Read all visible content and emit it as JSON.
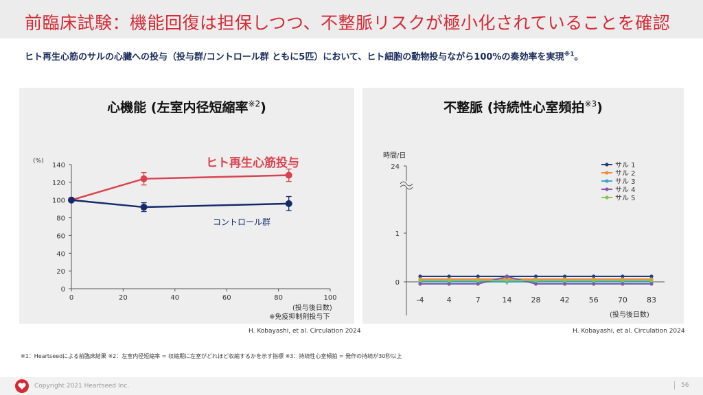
{
  "page": {
    "title": "前臨床試験：機能回復は担保しつつ、不整脈リスクが極小化されていることを確認",
    "subtitle": "ヒト再生心筋のサルの心臓への投与（投与群/コントロール群 ともに5匹）において、ヒト細胞の動物投与ながら100%の奏効率を実現",
    "subtitle_mark": "※1",
    "subtitle_end": "。",
    "left_panel_title": "心機能 (左室内径短縮率",
    "left_panel_title_mark": "※2",
    "left_panel_title_end": ")",
    "right_panel_title": "不整脈 (持続性心室頻拍",
    "right_panel_title_mark": "※3",
    "right_panel_title_end": ")",
    "citation_left": "H. Kobayashi, et al. Circulation 2024",
    "citation_right": "H. Kobayashi, et al. Circulation 2024",
    "footnote": "※1：Heartseedによる前臨床結果 ※2：左室内径短縮率 = 収縮期に左室がどれほど収縮するかを示す指標 ※3：持続性心室頻拍 = 発作の持続が30秒以上",
    "copyright": "Copyright 2021 Heartseed Inc.",
    "page_number": "56",
    "brand_color": "#d22b35",
    "logo_icon": "heart-logo-icon"
  },
  "chart_data": [
    {
      "type": "line",
      "ylabel": "(%)",
      "xlabel": "(投与後日数)",
      "note": "※免疫抑制剤投与下",
      "xlim": [
        0,
        100
      ],
      "ylim": [
        0,
        140
      ],
      "x_ticks": [
        0,
        20,
        40,
        60,
        80,
        100
      ],
      "y_ticks": [
        0,
        20,
        40,
        60,
        80,
        100,
        120,
        140
      ],
      "grid": false,
      "series": [
        {
          "name": "ヒト再生心筋投与",
          "color": "#d9434f",
          "x": [
            0,
            28,
            84
          ],
          "y": [
            100,
            124,
            128
          ],
          "err": [
            0,
            7,
            7
          ]
        },
        {
          "name": "コントロール群",
          "color": "#142a6b",
          "x": [
            0,
            28,
            84
          ],
          "y": [
            100,
            92,
            96
          ],
          "err": [
            0,
            5,
            8
          ]
        }
      ]
    },
    {
      "type": "line",
      "ylabel": "時間/日",
      "xlabel": "(投与後日数)",
      "categories": [
        "-4",
        "4",
        "7",
        "14",
        "28",
        "42",
        "56",
        "70",
        "83"
      ],
      "y_ticks": [
        "0",
        "1",
        "24"
      ],
      "axis_break": true,
      "legend_position": "top-right",
      "series": [
        {
          "name": "サル 1",
          "color": "#1f3d7a",
          "values": [
            0,
            0,
            0,
            0,
            0,
            0,
            0,
            0,
            0
          ]
        },
        {
          "name": "サル 2",
          "color": "#f28c3a",
          "values": [
            0,
            0,
            0,
            0,
            0,
            0,
            0,
            0,
            0
          ]
        },
        {
          "name": "サル 3",
          "color": "#3aa7c9",
          "values": [
            0,
            0,
            0,
            0,
            0,
            0,
            0,
            0,
            0
          ]
        },
        {
          "name": "サル 4",
          "color": "#7e5aa8",
          "values": [
            0,
            0,
            0,
            0.15,
            0,
            0,
            0,
            0,
            0
          ]
        },
        {
          "name": "サル 5",
          "color": "#8cc152",
          "values": [
            0,
            0,
            0,
            0,
            0,
            0,
            0,
            0,
            0
          ]
        }
      ]
    }
  ]
}
